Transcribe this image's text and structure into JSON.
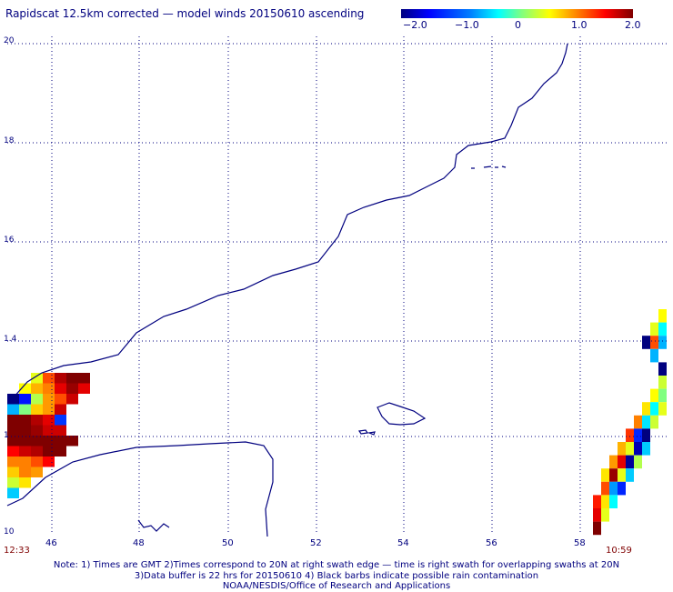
{
  "title": "Rapidscat 12.5km corrected — model winds 20150610 ascending",
  "colorbar": {
    "ticks": [
      "−2.0",
      "−1.0",
      "0",
      "1.0",
      "2.0"
    ],
    "colors": [
      "#00007f",
      "#0000ff",
      "#00ffff",
      "#ffff00",
      "#ff0000",
      "#7f0000"
    ]
  },
  "axes": {
    "y_labels": [
      "20",
      "18",
      "16",
      "1.4",
      "1",
      "10"
    ],
    "x_labels": [
      "46",
      "48",
      "50",
      "52",
      "54",
      "56",
      "58"
    ],
    "x_range_deg": [
      45.05,
      59.45
    ],
    "y_range_deg": [
      10,
      20
    ],
    "grid": "dotted"
  },
  "times": {
    "left": "12:33",
    "right": "10:59"
  },
  "notes": [
    "Note: 1) Times are GMT 2)Times correspond to 20N at right swath edge — time is right swath for overlapping swaths at 20N",
    "3)Data buffer is 22 hrs for 20150610 4) Black barbs indicate possible rain contamination",
    "NOAA/NESDIS/Office of Research and Applications"
  ],
  "swath_values_left": [
    [
      null,
      null,
      0.4,
      1.2,
      1.8,
      2.0,
      2.0
    ],
    [
      null,
      0.5,
      0.8,
      1.0,
      1.6,
      1.9,
      1.6
    ],
    [
      -2.0,
      -1.4,
      0.2,
      0.9,
      1.2,
      1.7,
      null
    ],
    [
      -0.6,
      0.0,
      0.7,
      0.9,
      1.7,
      null,
      null
    ],
    [
      2.0,
      2.0,
      1.8,
      1.6,
      -1.2,
      null,
      null
    ],
    [
      2.0,
      2.0,
      1.9,
      1.7,
      1.7,
      null,
      null
    ],
    [
      2.0,
      2.0,
      2.0,
      2.0,
      2.0,
      2.0,
      null
    ],
    [
      1.5,
      1.7,
      1.8,
      2.0,
      2.0,
      null,
      null
    ],
    [
      1.0,
      1.0,
      1.2,
      1.5,
      null,
      null,
      null
    ],
    [
      0.7,
      1.0,
      0.9,
      null,
      null,
      null,
      null
    ],
    [
      0.3,
      0.6,
      null,
      null,
      null,
      null,
      null
    ],
    [
      -0.5,
      null,
      null,
      null,
      null,
      null,
      null
    ]
  ],
  "swath_values_right": [
    [
      null,
      null,
      null,
      null,
      null,
      null,
      null,
      null,
      0.5
    ],
    [
      null,
      null,
      null,
      null,
      null,
      null,
      null,
      0.4,
      -0.3
    ],
    [
      null,
      null,
      null,
      null,
      null,
      null,
      -2.0,
      1.2,
      -0.6
    ],
    [
      null,
      null,
      null,
      null,
      null,
      null,
      null,
      -0.6,
      null
    ],
    [
      null,
      null,
      null,
      null,
      null,
      null,
      null,
      null,
      -2.0
    ],
    [
      null,
      null,
      null,
      null,
      null,
      null,
      null,
      null,
      0.3
    ],
    [
      null,
      null,
      null,
      null,
      null,
      null,
      null,
      0.5,
      0.0
    ],
    [
      null,
      null,
      null,
      null,
      null,
      null,
      0.6,
      -0.3,
      0.4
    ],
    [
      null,
      null,
      null,
      null,
      null,
      1.0,
      -0.4,
      0.3,
      null
    ],
    [
      null,
      null,
      null,
      null,
      1.3,
      -1.3,
      -2.0,
      null,
      null
    ],
    [
      null,
      null,
      null,
      0.8,
      0.4,
      -1.8,
      -0.5,
      null,
      null
    ],
    [
      null,
      null,
      0.9,
      1.6,
      -1.9,
      0.2,
      null,
      null,
      null
    ],
    [
      null,
      0.6,
      1.9,
      0.4,
      -0.5,
      null,
      null,
      null,
      null
    ],
    [
      null,
      1.2,
      -0.7,
      -1.3,
      null,
      null,
      null,
      null,
      null
    ],
    [
      1.4,
      0.6,
      -0.3,
      null,
      null,
      null,
      null,
      null,
      null
    ],
    [
      1.6,
      0.4,
      null,
      null,
      null,
      null,
      null,
      null,
      null
    ],
    [
      2.0,
      null,
      null,
      null,
      null,
      null,
      null,
      null,
      null
    ]
  ]
}
